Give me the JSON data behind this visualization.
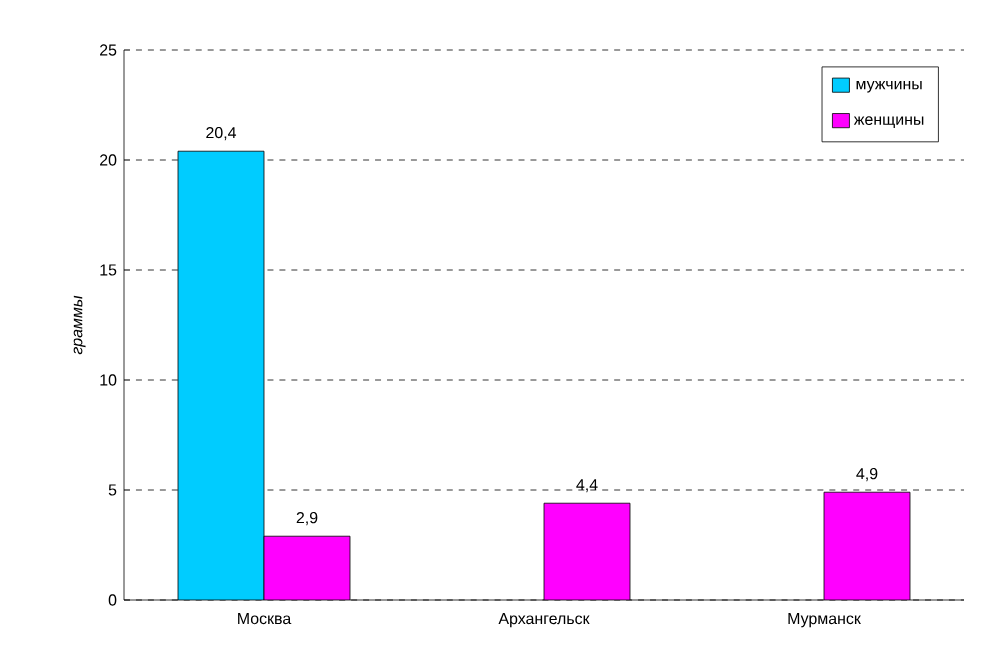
{
  "chart_data": {
    "type": "bar",
    "ylabel": "граммы",
    "categories": [
      "Москва",
      "Архангельск",
      "Мурманск"
    ],
    "series": [
      {
        "name": "мужчины",
        "color": "#00ccff",
        "values": [
          20.4,
          null,
          null
        ],
        "value_labels": [
          "20,4",
          null,
          null
        ]
      },
      {
        "name": "женщины",
        "color": "#ff00ff",
        "values": [
          2.9,
          4.4,
          4.9
        ],
        "value_labels": [
          "2,9",
          "4,4",
          "4,9"
        ]
      }
    ],
    "ylim": [
      0,
      25
    ],
    "yticks": [
      0,
      5,
      10,
      15,
      20,
      25
    ],
    "grid": "y",
    "legend": "top right"
  }
}
